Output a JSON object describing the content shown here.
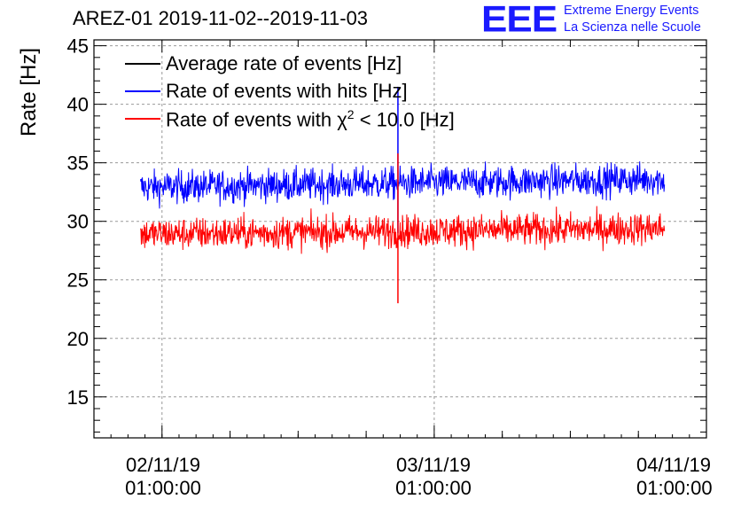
{
  "chart_data": {
    "type": "line",
    "title": "AREZ-01 2019-11-02--2019-11-03",
    "ylabel": "Rate [Hz]",
    "xlabel": "",
    "ylim": [
      11.5,
      45.5
    ],
    "yticks": [
      15,
      20,
      25,
      30,
      35,
      40,
      45
    ],
    "x_major_ticks": [
      {
        "date": "02/11/19",
        "time": "01:00:00",
        "hours": 0
      },
      {
        "date": "03/11/19",
        "time": "01:00:00",
        "hours": 24
      },
      {
        "date": "04/11/19",
        "time": "01:00:00",
        "hours": 48
      }
    ],
    "xlim_hours": [
      -6,
      48
    ],
    "grid": true,
    "legend_position": "top-left",
    "series": [
      {
        "name": "Average rate of events [Hz]",
        "color": "#000000",
        "start_hours": -1.9,
        "end_hours": 44.3,
        "mean": 33.2,
        "noise": 0.0,
        "visible": false
      },
      {
        "name": "Rate of events with hits [Hz]",
        "color": "#0000ff",
        "start_hours": -1.9,
        "end_hours": 44.3,
        "mean_start": 32.9,
        "mean_end": 33.6,
        "noise": 1.0,
        "spike_hours": 20.8,
        "spike_high": 41.5,
        "spike_low": 29.0
      },
      {
        "name": "Rate of events with χ² < 10.0 [Hz]",
        "color": "#ff0000",
        "start_hours": -1.9,
        "end_hours": 44.3,
        "mean_start": 28.9,
        "mean_end": 29.4,
        "noise": 1.0,
        "spike_hours": 20.8,
        "spike_high": 35.8,
        "spike_low": 23.0
      }
    ]
  },
  "legend": {
    "average": "Average rate of events [Hz]",
    "hits": "Rate of events with hits [Hz]",
    "chi2_prefix": "Rate of events with ",
    "chi2_symbol": "χ",
    "chi2_sup": "2",
    "chi2_suffix": " < 10.0 [Hz]"
  },
  "logo": {
    "letters": "EEE",
    "line1": "Extreme Energy Events",
    "line2": "La Scienza nelle Scuole"
  }
}
